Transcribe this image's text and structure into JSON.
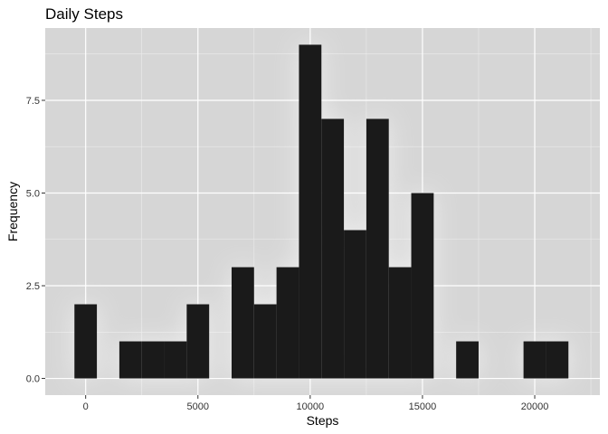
{
  "chart_data": {
    "type": "bar",
    "title": "Daily Steps",
    "xlabel": "Steps",
    "ylabel": "Frequency",
    "bin_width": 1000,
    "bins": [
      {
        "center": 0,
        "count": 2
      },
      {
        "center": 1000,
        "count": 0
      },
      {
        "center": 2000,
        "count": 1
      },
      {
        "center": 3000,
        "count": 1
      },
      {
        "center": 4000,
        "count": 1
      },
      {
        "center": 5000,
        "count": 2
      },
      {
        "center": 6000,
        "count": 0
      },
      {
        "center": 7000,
        "count": 3
      },
      {
        "center": 8000,
        "count": 2
      },
      {
        "center": 9000,
        "count": 3
      },
      {
        "center": 10000,
        "count": 9
      },
      {
        "center": 11000,
        "count": 7
      },
      {
        "center": 12000,
        "count": 4
      },
      {
        "center": 13000,
        "count": 7
      },
      {
        "center": 14000,
        "count": 3
      },
      {
        "center": 15000,
        "count": 5
      },
      {
        "center": 16000,
        "count": 0
      },
      {
        "center": 17000,
        "count": 1
      },
      {
        "center": 18000,
        "count": 0
      },
      {
        "center": 19000,
        "count": 0
      },
      {
        "center": 20000,
        "count": 1
      },
      {
        "center": 21000,
        "count": 1
      }
    ],
    "xlim": [
      -1800,
      22900
    ],
    "ylim": [
      -0.45,
      9.45
    ],
    "x_ticks": [
      0,
      5000,
      10000,
      15000,
      20000
    ],
    "x_tick_labels": [
      "0",
      "5000",
      "10000",
      "15000",
      "20000"
    ],
    "y_ticks": [
      0,
      2.5,
      5,
      7.5
    ],
    "y_tick_labels": [
      "0.0",
      "2.5",
      "5.0",
      "7.5"
    ],
    "grid": true,
    "legend": "none",
    "colors": {
      "panel_background": "#d6d6d6",
      "grid_major": "#ffffff",
      "bar_fill": "#1a1a1a"
    }
  }
}
